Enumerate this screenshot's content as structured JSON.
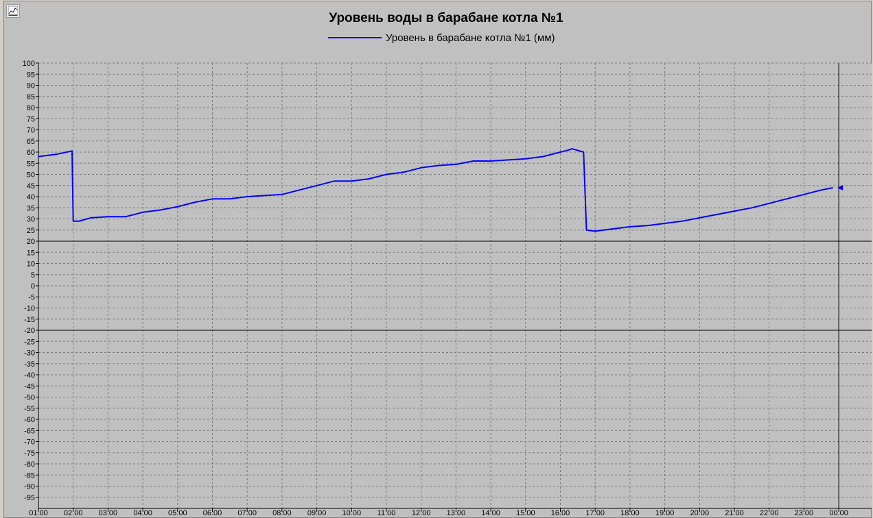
{
  "chart_data": {
    "type": "line",
    "title": "Уровень воды в барабане котла №1",
    "legend_position": "top-center",
    "grid": true,
    "series": [
      {
        "name": "Уровень в барабане котла №1 (мм)",
        "color": "#0000ff",
        "x": [
          "01:00",
          "01:30",
          "01:58",
          "02:00",
          "02:10",
          "02:30",
          "03:00",
          "03:30",
          "04:00",
          "04:30",
          "05:00",
          "05:30",
          "06:00",
          "06:30",
          "07:00",
          "07:30",
          "08:00",
          "08:30",
          "09:00",
          "09:30",
          "10:00",
          "10:30",
          "11:00",
          "11:30",
          "12:00",
          "12:30",
          "13:00",
          "13:30",
          "14:00",
          "14:30",
          "15:00",
          "15:30",
          "16:00",
          "16:15",
          "16:20",
          "16:40",
          "16:45",
          "17:00",
          "17:30",
          "18:00",
          "18:30",
          "19:00",
          "19:30",
          "20:00",
          "20:30",
          "21:00",
          "21:30",
          "22:00",
          "22:30",
          "23:00",
          "23:30",
          "23:50"
        ],
        "values": [
          58,
          59,
          60.5,
          29,
          29,
          30.5,
          31,
          31,
          33,
          34,
          35.5,
          37.5,
          39,
          39,
          40,
          40.5,
          41,
          43,
          45,
          47,
          47,
          48,
          50,
          51,
          53,
          54,
          54.5,
          56,
          56,
          56.5,
          57,
          58,
          60,
          61,
          61.5,
          60,
          25,
          24.5,
          25.5,
          26.5,
          27,
          28,
          29,
          30.5,
          32,
          33.5,
          35,
          37,
          39,
          41,
          43,
          44
        ]
      }
    ],
    "x_ticks": [
      "01:00",
      "02:00",
      "03:00",
      "04:00",
      "05:00",
      "06:00",
      "07:00",
      "08:00",
      "09:00",
      "10:00",
      "11:00",
      "12:00",
      "13:00",
      "14:00",
      "15:00",
      "16:00",
      "17:00",
      "18:00",
      "19:00",
      "20:00",
      "21:00",
      "22:00",
      "23:00",
      "00:00"
    ],
    "y_ticks": [
      "100",
      "95",
      "90",
      "85",
      "80",
      "75",
      "70",
      "65",
      "60",
      "55",
      "50",
      "45",
      "40",
      "35",
      "30",
      "25",
      "20",
      "15",
      "10",
      "5",
      "0",
      "-5",
      "-10",
      "-15",
      "-20",
      "-25",
      "-30",
      "-35",
      "-40",
      "-45",
      "-50",
      "-55",
      "-60",
      "-65",
      "-70",
      "-75",
      "-80",
      "-85",
      "-90",
      "-95"
    ],
    "ylim": [
      -100,
      100
    ],
    "xlim": [
      "01:00",
      "24:00"
    ],
    "limit_lines": [
      20,
      -20
    ],
    "cursor_x": "24:00",
    "cursor_marker_value": 44
  }
}
